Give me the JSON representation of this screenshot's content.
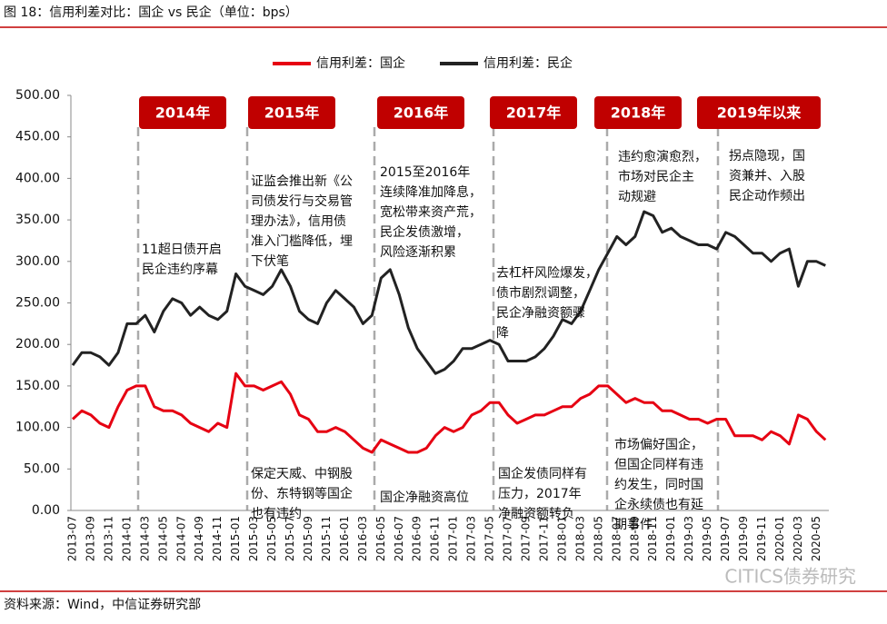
{
  "header": {
    "title": "图 18：信用利差对比：国企 vs 民企（单位：bps）"
  },
  "chart_data": {
    "type": "line",
    "categories": [
      "2013-07",
      null,
      "2013-09",
      null,
      "2013-11",
      null,
      "2014-01",
      null,
      "2014-03",
      null,
      "2014-05",
      null,
      "2014-07",
      null,
      "2014-09",
      null,
      "2014-11",
      null,
      "2015-01",
      null,
      "2015-03",
      null,
      "2015-05",
      null,
      "2015-07",
      null,
      "2015-09",
      null,
      "2015-11",
      null,
      "2016-01",
      null,
      "2016-03",
      null,
      "2016-05",
      null,
      "2016-07",
      null,
      "2016-09",
      null,
      "2016-11",
      null,
      "2017-01",
      null,
      "2017-03",
      null,
      "2017-05",
      null,
      "2017-07",
      null,
      "2017-09",
      null,
      "2017-11",
      null,
      "2018-01",
      null,
      "2018-03",
      null,
      "2018-05",
      null,
      "2018-07",
      null,
      "2018-09",
      null,
      "2018-11",
      null,
      "2019-01",
      null,
      "2019-03",
      null,
      "2019-05",
      null,
      "2019-07",
      null,
      "2019-09",
      null,
      "2019-11",
      null,
      "2020-01",
      null,
      "2020-03",
      null,
      "2020-05",
      null
    ],
    "series": [
      {
        "name": "信用利差：国企",
        "color": "#e60012",
        "values": [
          110,
          120,
          115,
          105,
          100,
          125,
          145,
          150,
          150,
          125,
          120,
          120,
          115,
          105,
          100,
          95,
          105,
          100,
          165,
          150,
          150,
          145,
          150,
          155,
          140,
          115,
          110,
          95,
          95,
          100,
          95,
          85,
          75,
          70,
          85,
          80,
          75,
          70,
          70,
          75,
          90,
          100,
          95,
          100,
          115,
          120,
          130,
          130,
          115,
          105,
          110,
          115,
          115,
          120,
          125,
          125,
          135,
          140,
          150,
          150,
          140,
          130,
          135,
          130,
          130,
          120,
          120,
          115,
          110,
          110,
          105,
          110,
          110,
          90,
          90,
          90,
          85,
          95,
          90,
          80,
          115,
          110,
          95,
          85
        ]
      },
      {
        "name": "信用利差：民企",
        "color": "#222222",
        "values": [
          175,
          190,
          190,
          185,
          175,
          190,
          225,
          225,
          235,
          215,
          240,
          255,
          250,
          235,
          245,
          235,
          230,
          240,
          285,
          270,
          265,
          260,
          270,
          290,
          270,
          240,
          230,
          225,
          250,
          265,
          255,
          245,
          225,
          235,
          280,
          290,
          260,
          220,
          195,
          180,
          165,
          170,
          180,
          195,
          195,
          200,
          205,
          200,
          180,
          180,
          180,
          185,
          195,
          210,
          230,
          225,
          240,
          265,
          290,
          310,
          330,
          320,
          330,
          360,
          355,
          335,
          340,
          330,
          325,
          320,
          320,
          315,
          335,
          330,
          320,
          310,
          310,
          300,
          310,
          315,
          270,
          300,
          300,
          295
        ]
      }
    ],
    "ylim": [
      0,
      500
    ],
    "yticks": [
      {
        "value": 0,
        "label": "0.00"
      },
      {
        "value": 50,
        "label": "50.00"
      },
      {
        "value": 100,
        "label": "100.00"
      },
      {
        "value": 150,
        "label": "150.00"
      },
      {
        "value": 200,
        "label": "200.00"
      },
      {
        "value": 250,
        "label": "250.00"
      },
      {
        "value": 300,
        "label": "300.00"
      },
      {
        "value": 350,
        "label": "350.00"
      },
      {
        "value": 400,
        "label": "400.00"
      },
      {
        "value": 450,
        "label": "450.00"
      },
      {
        "value": 500,
        "label": "500.00"
      }
    ],
    "grid": false,
    "legend": "top",
    "periods": [
      "2014年",
      "2015年",
      "2016年",
      "2017年",
      "2018年",
      "2019年以来"
    ],
    "annotations": [
      {
        "lines": [
          "11超日债开启",
          "民企违约序幕"
        ]
      },
      {
        "lines": [
          "证监会推出新《公",
          "司债发行与交易管",
          "理办法》，信用债",
          "准入门槛降低，埋",
          "下伏笔"
        ]
      },
      {
        "lines": [
          "2015至2016年",
          "连续降准加降息，",
          "宽松带来资产荒，",
          "民企发债激增，",
          "风险逐渐积累"
        ]
      },
      {
        "lines": [
          "去杠杆风险爆发，",
          "债市剧烈调整，",
          "民企净融资额骤",
          "降"
        ]
      },
      {
        "lines": [
          "违约愈演愈烈，",
          "市场对民企主",
          "动规避"
        ]
      },
      {
        "lines": [
          "拐点隐现，国",
          "资兼并、入股",
          "民企动作频出"
        ]
      },
      {
        "lines": [
          "保定天威、中钢股",
          "份、东特钢等国企",
          "也有违约"
        ]
      },
      {
        "lines": [
          "国企净融资高位"
        ]
      },
      {
        "lines": [
          "国企发债同样有",
          "压力，2017年",
          "净融资额转负"
        ]
      },
      {
        "lines": [
          "市场偏好国企，",
          "但国企同样有违",
          "约发生，同时国",
          "企永续债也有延",
          "期事件"
        ]
      }
    ]
  },
  "footer": {
    "source": "资料来源：Wind，中信证券研究部",
    "watermark": "CITICS债券研究"
  }
}
